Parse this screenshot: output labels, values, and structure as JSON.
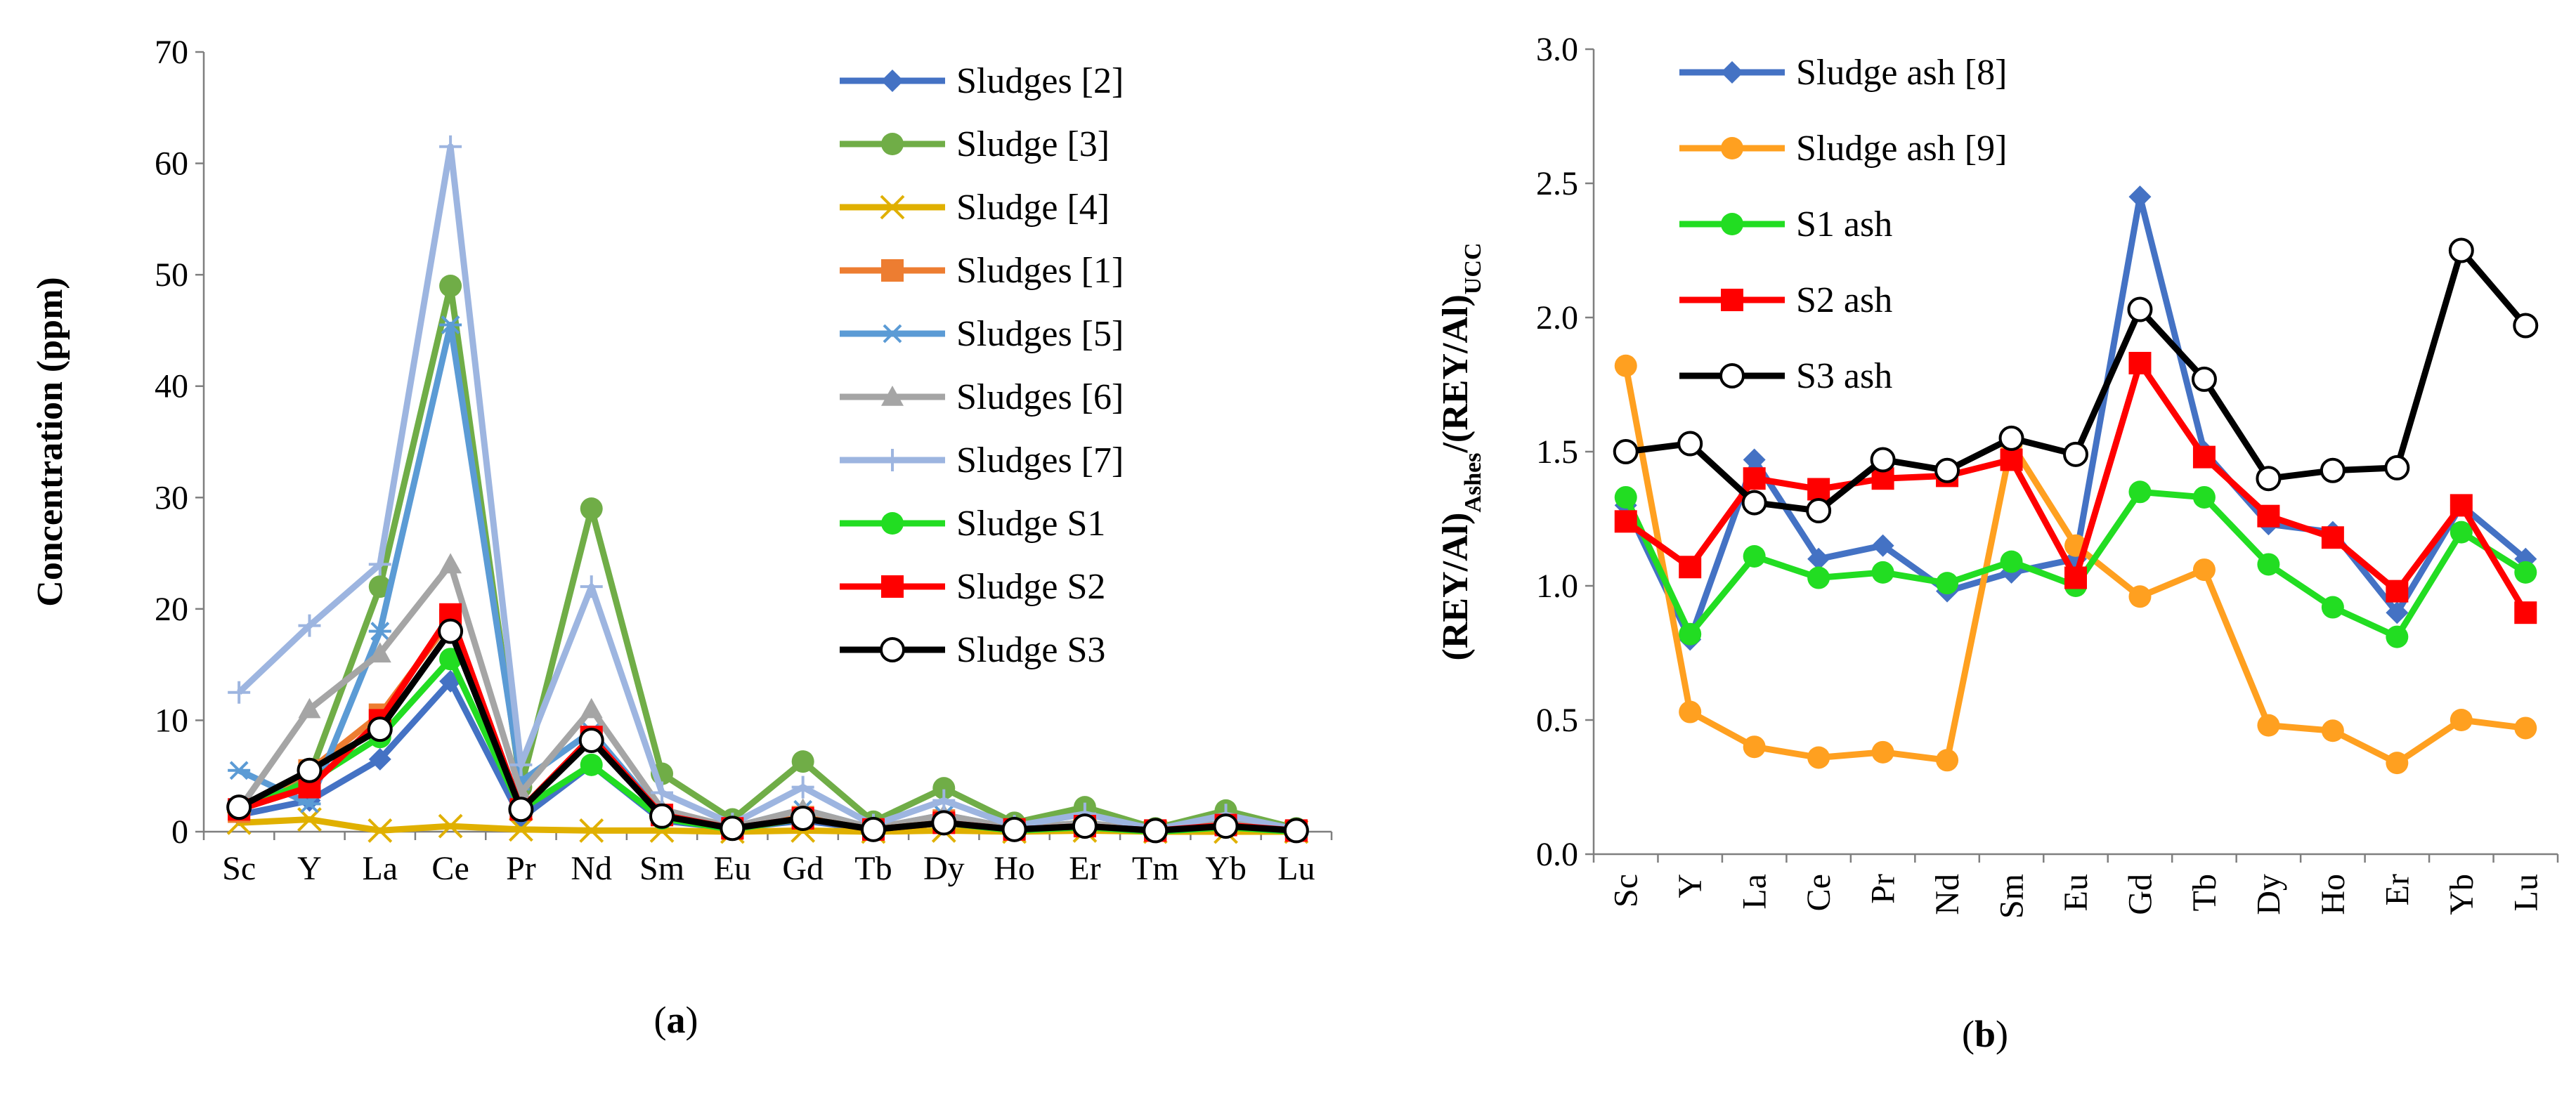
{
  "chart_data": [
    {
      "type": "line",
      "panel_label": "(a)",
      "panel_letter": "a",
      "title": "",
      "xlabel": "",
      "ylabel": "Concentration (ppm)",
      "ylim": [
        0,
        70
      ],
      "yticks": [
        0,
        10,
        20,
        30,
        40,
        50,
        60,
        70
      ],
      "categories": [
        "Sc",
        "Y",
        "La",
        "Ce",
        "Pr",
        "Nd",
        "Sm",
        "Eu",
        "Gd",
        "Tb",
        "Dy",
        "Ho",
        "Er",
        "Tm",
        "Yb",
        "Lu"
      ],
      "legend_position": "right",
      "series": [
        {
          "name": "Sludges [2]",
          "color": "#4472C4",
          "marker": "diamond",
          "values": [
            1.5,
            2.8,
            6.5,
            13.5,
            1.2,
            6.0,
            1.0,
            0.3,
            1.0,
            0.2,
            0.8,
            0.2,
            0.5,
            0.1,
            0.5,
            0.1
          ]
        },
        {
          "name": "Sludge [3]",
          "color": "#70AD47",
          "marker": "circle",
          "values": [
            2.0,
            5.0,
            22.0,
            49.0,
            4.0,
            29.0,
            5.2,
            1.1,
            6.3,
            0.9,
            3.9,
            0.8,
            2.2,
            0.3,
            1.9,
            0.3
          ]
        },
        {
          "name": "Sludge [4]",
          "color": "#E0B000",
          "marker": "x",
          "values": [
            0.8,
            1.1,
            0.1,
            0.5,
            0.2,
            0.1,
            0.1,
            0.0,
            0.1,
            0.0,
            0.1,
            0.0,
            0.1,
            0.0,
            0.0,
            0.0
          ]
        },
        {
          "name": "Sludges [1]",
          "color": "#ED7D31",
          "marker": "square",
          "values": [
            1.8,
            5.5,
            10.5,
            19.0,
            2.0,
            8.5,
            1.5,
            0.3,
            1.3,
            0.2,
            1.0,
            0.2,
            0.6,
            0.1,
            0.6,
            0.1
          ]
        },
        {
          "name": "Sludges [5]",
          "color": "#5B9BD5",
          "marker": "asterisk",
          "values": [
            5.5,
            2.5,
            18.0,
            45.5,
            4.5,
            9.0,
            1.5,
            0.4,
            2.0,
            0.3,
            1.5,
            0.3,
            0.8,
            0.1,
            0.8,
            0.1
          ]
        },
        {
          "name": "Sludges [6]",
          "color": "#A5A5A5",
          "marker": "triangle",
          "values": [
            2.0,
            11.0,
            16.0,
            24.0,
            3.5,
            11.0,
            2.0,
            0.4,
            2.0,
            0.3,
            1.5,
            0.3,
            0.8,
            0.1,
            0.8,
            0.1
          ]
        },
        {
          "name": "Sludges [7]",
          "color": "#9DB5E0",
          "marker": "plus",
          "values": [
            12.5,
            18.5,
            24.0,
            61.5,
            6.0,
            22.0,
            3.5,
            0.7,
            4.0,
            0.6,
            2.8,
            0.5,
            1.6,
            0.2,
            1.5,
            0.2
          ]
        },
        {
          "name": "Sludge S1",
          "color": "#22DD22",
          "marker": "circle",
          "values": [
            2.0,
            4.5,
            8.5,
            15.5,
            2.0,
            6.0,
            1.2,
            0.2,
            1.2,
            0.2,
            0.8,
            0.1,
            0.4,
            0.0,
            0.4,
            0.0
          ]
        },
        {
          "name": "Sludge S2",
          "color": "#FF0000",
          "marker": "square",
          "values": [
            2.0,
            4.0,
            10.0,
            19.5,
            2.0,
            8.5,
            1.5,
            0.3,
            1.2,
            0.2,
            0.8,
            0.2,
            0.5,
            0.1,
            0.6,
            0.1
          ]
        },
        {
          "name": "Sludge S3",
          "color": "#000000",
          "marker": "open-circle",
          "values": [
            2.2,
            5.5,
            9.2,
            18.0,
            2.0,
            8.2,
            1.4,
            0.3,
            1.2,
            0.2,
            0.8,
            0.2,
            0.5,
            0.1,
            0.5,
            0.1
          ]
        }
      ]
    },
    {
      "type": "line",
      "panel_label": "(b)",
      "panel_letter": "b",
      "title": "",
      "xlabel": "",
      "ylabel": "(REY/Al)Ashes/(REY/Al)UCC",
      "ylabel_parts": [
        {
          "text": "(REY/Al)",
          "sub": false
        },
        {
          "text": "Ashes",
          "sub": true
        },
        {
          "text": "/(REY/Al)",
          "sub": false
        },
        {
          "text": "UCC",
          "sub": true
        }
      ],
      "ylim": [
        0,
        3
      ],
      "yticks": [
        "0.0",
        "0.5",
        "1.0",
        "1.5",
        "2.0",
        "2.5",
        "3.0"
      ],
      "categories": [
        "Sc",
        "Y",
        "La",
        "Ce",
        "Pr",
        "Nd",
        "Sm",
        "Eu",
        "Gd",
        "Tb",
        "Dy",
        "Ho",
        "Er",
        "Yb",
        "Lu"
      ],
      "legend_position": "top-left",
      "series": [
        {
          "name": "Sludge ash [8]",
          "color": "#4472C4",
          "marker": "diamond",
          "values": [
            1.3,
            0.8,
            1.47,
            1.1,
            1.15,
            0.98,
            1.05,
            1.1,
            2.45,
            1.5,
            1.23,
            1.2,
            0.9,
            1.3,
            1.1
          ]
        },
        {
          "name": "Sludge ash [9]",
          "color": "#FFA020",
          "marker": "circle",
          "values": [
            1.82,
            0.53,
            0.4,
            0.36,
            0.38,
            0.35,
            1.53,
            1.15,
            0.96,
            1.06,
            0.48,
            0.46,
            0.34,
            0.5,
            0.47
          ]
        },
        {
          "name": "S1 ash",
          "color": "#22DD22",
          "marker": "circle",
          "values": [
            1.33,
            0.82,
            1.11,
            1.03,
            1.05,
            1.01,
            1.09,
            1.0,
            1.35,
            1.33,
            1.08,
            0.92,
            0.81,
            1.2,
            1.05
          ]
        },
        {
          "name": "S2 ash",
          "color": "#FF0000",
          "marker": "square",
          "values": [
            1.24,
            1.07,
            1.4,
            1.36,
            1.4,
            1.41,
            1.47,
            1.03,
            1.83,
            1.48,
            1.26,
            1.18,
            0.98,
            1.3,
            0.9
          ]
        },
        {
          "name": "S3 ash",
          "color": "#000000",
          "marker": "open-circle",
          "values": [
            1.5,
            1.53,
            1.31,
            1.28,
            1.47,
            1.43,
            1.55,
            1.49,
            2.03,
            1.77,
            1.4,
            1.43,
            1.44,
            2.25,
            1.97
          ]
        }
      ]
    }
  ]
}
